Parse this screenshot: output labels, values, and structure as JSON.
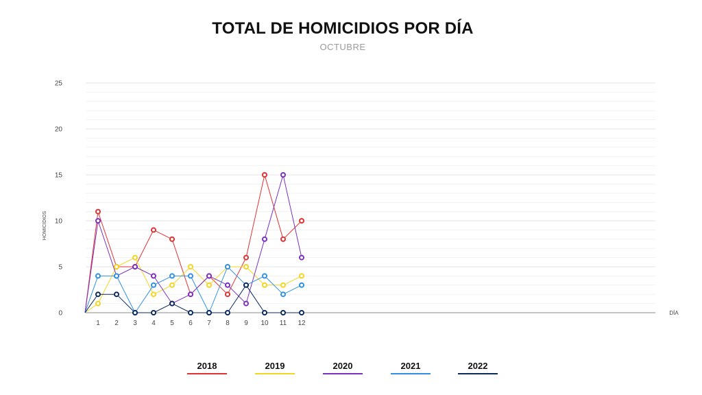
{
  "title": "TOTAL DE HOMICIDIOS POR DÍA",
  "subtitle": "OCTUBRE",
  "chart_data": {
    "type": "line",
    "title": "TOTAL DE HOMICIDIOS POR DÍA",
    "subtitle": "OCTUBRE",
    "xlabel": "DÍA",
    "ylabel": "HOMICIDIOS",
    "ylim": [
      0,
      25
    ],
    "yticks": [
      0,
      5,
      10,
      15,
      20,
      25
    ],
    "x": [
      1,
      2,
      3,
      4,
      5,
      6,
      7,
      8,
      9,
      10,
      11,
      12
    ],
    "grid": true,
    "legend_position": "bottom",
    "series": [
      {
        "name": "2018",
        "color": "#e03131",
        "values": [
          11,
          5,
          5,
          9,
          8,
          2,
          4,
          2,
          6,
          15,
          8,
          10
        ]
      },
      {
        "name": "2019",
        "color": "#f2d51f",
        "values": [
          1,
          5,
          6,
          2,
          3,
          5,
          3,
          5,
          5,
          3,
          3,
          4
        ]
      },
      {
        "name": "2020",
        "color": "#7b2fbf",
        "values": [
          10,
          4,
          5,
          4,
          1,
          2,
          4,
          3,
          1,
          8,
          15,
          6
        ]
      },
      {
        "name": "2021",
        "color": "#2f8fe0",
        "values": [
          4,
          4,
          0,
          3,
          4,
          4,
          0,
          5,
          3,
          4,
          2,
          3
        ]
      },
      {
        "name": "2022",
        "color": "#0b2a5c",
        "values": [
          2,
          2,
          0,
          0,
          1,
          0,
          0,
          0,
          3,
          0,
          0,
          0
        ]
      }
    ]
  }
}
